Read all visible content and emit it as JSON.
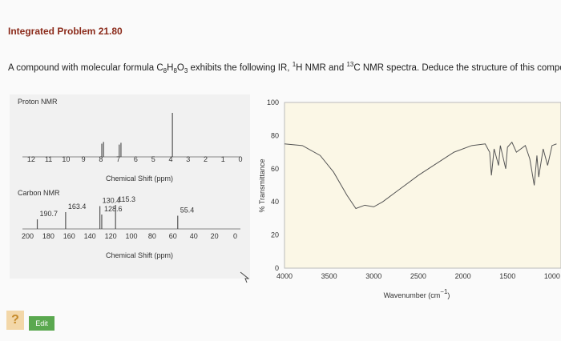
{
  "header": {
    "title": "Integrated Problem 21.80"
  },
  "statement": {
    "parts": [
      "A compound with molecular formula C",
      "8",
      "H",
      "8",
      "O",
      "3",
      " exhibits the following IR, ",
      "1",
      "H NMR and ",
      "13",
      "C NMR spectra. Deduce the structure of this compound"
    ]
  },
  "proton_nmr": {
    "label": "Proton NMR",
    "axis_label": "Chemical Shift (ppm)",
    "xlim": [
      12.5,
      0
    ],
    "xticks": [
      12,
      11,
      10,
      9,
      8,
      7,
      6,
      5,
      4,
      3,
      2,
      1,
      0
    ],
    "peaks": {
      "x": [
        7.95,
        7.85,
        6.95,
        6.85,
        3.9
      ],
      "values": [
        30,
        34,
        28,
        32,
        100
      ]
    }
  },
  "carbon_nmr": {
    "label": "Carbon NMR",
    "axis_label": "Chemical Shift (ppm)",
    "xlim": [
      205,
      -5
    ],
    "xticks": [
      200,
      180,
      160,
      140,
      120,
      100,
      80,
      60,
      40,
      20,
      0
    ],
    "peaks": {
      "x": [
        190.7,
        163.4,
        130.4,
        128.6,
        115.3,
        55.4
      ],
      "values": [
        40,
        70,
        95,
        60,
        100,
        55
      ]
    }
  },
  "ir": {
    "type": "line",
    "ylabel": "% Transmittance",
    "xlabel_parts": [
      "Wavenumber (cm",
      "−1",
      ")"
    ],
    "xlim": [
      4000,
      900
    ],
    "xticks": [
      4000,
      3500,
      3000,
      2500,
      2000,
      1500,
      1000
    ],
    "ylim": [
      0,
      100
    ],
    "yticks": [
      0,
      20,
      40,
      60,
      80,
      100
    ],
    "color": "#555555",
    "x": [
      4000,
      3800,
      3600,
      3450,
      3300,
      3200,
      3100,
      3000,
      2900,
      2700,
      2500,
      2300,
      2100,
      1900,
      1750,
      1700,
      1680,
      1650,
      1600,
      1580,
      1520,
      1500,
      1450,
      1400,
      1300,
      1250,
      1200,
      1170,
      1150,
      1100,
      1050,
      1000,
      950
    ],
    "values": [
      75,
      74,
      68,
      58,
      44,
      36,
      38,
      37,
      40,
      48,
      56,
      63,
      70,
      74,
      75,
      70,
      56,
      72,
      62,
      74,
      60,
      73,
      76,
      70,
      74,
      66,
      50,
      68,
      55,
      72,
      62,
      74,
      75
    ]
  },
  "buttons": {
    "help": "?",
    "edit": "Edit"
  }
}
